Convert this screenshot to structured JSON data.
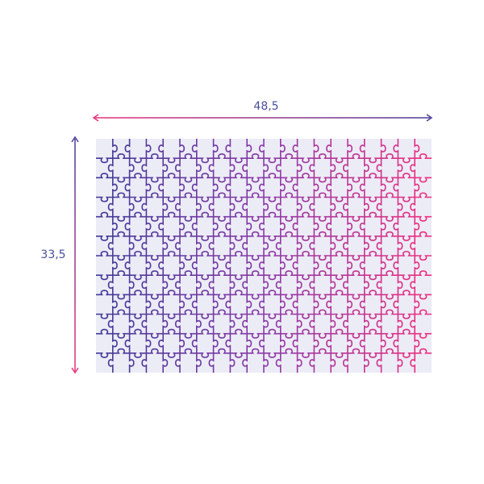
{
  "dimensions": {
    "width": "48,5",
    "height": "33,5"
  }
}
